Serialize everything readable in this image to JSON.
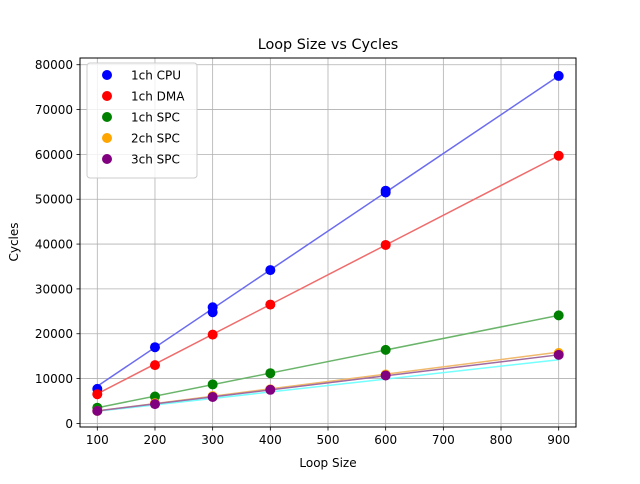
{
  "chart_data": {
    "type": "scatter",
    "title": "Loop Size vs Cycles",
    "xlabel": "Loop Size",
    "ylabel": "Cycles",
    "xlim": [
      70,
      930
    ],
    "ylim": [
      -800,
      81500
    ],
    "xticks": [
      100,
      200,
      300,
      400,
      500,
      600,
      700,
      800,
      900
    ],
    "yticks": [
      0,
      10000,
      20000,
      30000,
      40000,
      50000,
      60000,
      70000,
      80000
    ],
    "grid": true,
    "legend_position": "top-left",
    "series": [
      {
        "name": "1ch CPU",
        "color": "#0000ff",
        "points": [
          [
            100,
            7700
          ],
          [
            200,
            17000
          ],
          [
            300,
            24800
          ],
          [
            300,
            25900
          ],
          [
            400,
            34200
          ],
          [
            600,
            51500
          ],
          [
            600,
            51900
          ],
          [
            900,
            77500
          ]
        ],
        "trend": [
          [
            100,
            8300
          ],
          [
            900,
            77500
          ]
        ],
        "trend_color": "#6b6bf0"
      },
      {
        "name": "1ch DMA",
        "color": "#ff0000",
        "points": [
          [
            100,
            6500
          ],
          [
            200,
            13000
          ],
          [
            300,
            19800
          ],
          [
            400,
            26500
          ],
          [
            600,
            39800
          ],
          [
            900,
            59700
          ]
        ],
        "trend": [
          [
            100,
            6600
          ],
          [
            900,
            59700
          ]
        ],
        "trend_color": "#f06b6b"
      },
      {
        "name": "1ch SPC",
        "color": "#008000",
        "points": [
          [
            100,
            3500
          ],
          [
            200,
            6000
          ],
          [
            300,
            8700
          ],
          [
            400,
            11200
          ],
          [
            600,
            16400
          ],
          [
            900,
            24100
          ]
        ],
        "trend": [
          [
            100,
            3500
          ],
          [
            900,
            24100
          ]
        ],
        "trend_color": "#6bb56b"
      },
      {
        "name": "2ch SPC",
        "color": "#ffa500",
        "points": [
          [
            100,
            2800
          ],
          [
            200,
            4500
          ],
          [
            300,
            6100
          ],
          [
            400,
            7600
          ],
          [
            600,
            10900
          ],
          [
            900,
            15700
          ]
        ],
        "trend": [
          [
            100,
            2800
          ],
          [
            900,
            15900
          ]
        ],
        "trend_color": "#f0b96b"
      },
      {
        "name": "3ch SPC",
        "color": "#800080",
        "points": [
          [
            100,
            2800
          ],
          [
            200,
            4300
          ],
          [
            300,
            5900
          ],
          [
            400,
            7500
          ],
          [
            600,
            10700
          ],
          [
            900,
            15300
          ]
        ],
        "trend": [
          [
            100,
            2800
          ],
          [
            900,
            15300
          ]
        ],
        "trend_color": "#a06ba0"
      }
    ],
    "extra_lines": [
      {
        "color": "#66ffff",
        "points": [
          [
            100,
            2700
          ],
          [
            900,
            14200
          ]
        ]
      }
    ]
  }
}
